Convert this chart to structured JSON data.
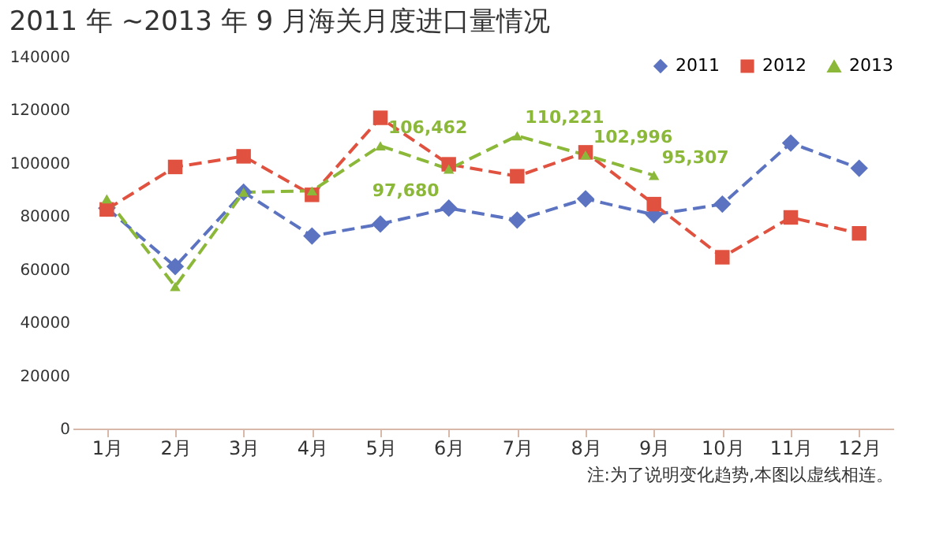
{
  "chart_data": {
    "type": "line",
    "title": "2011 年 ~2013 年 9 月海关月度进口量情况",
    "categories": [
      "1月",
      "2月",
      "3月",
      "4月",
      "5月",
      "6月",
      "7月",
      "8月",
      "9月",
      "10月",
      "11月",
      "12月"
    ],
    "series": [
      {
        "name": "2011",
        "color": "#5b73c0",
        "marker": "diamond",
        "line_style": "dashed",
        "values": [
          83000,
          61000,
          89000,
          72500,
          77000,
          83000,
          78500,
          86500,
          80500,
          84500,
          107500,
          98000
        ]
      },
      {
        "name": "2012",
        "color": "#e0523f",
        "marker": "square",
        "line_style": "dashed",
        "values": [
          82500,
          98500,
          102500,
          88000,
          117000,
          99500,
          95000,
          104000,
          84500,
          64500,
          79500,
          73500
        ]
      },
      {
        "name": "2013",
        "color": "#8cb83a",
        "marker": "triangle",
        "line_style": "dashed",
        "values": [
          86500,
          53500,
          89000,
          89500,
          106462,
          97680,
          110221,
          102996,
          95307,
          null,
          null,
          null
        ],
        "value_labels": [
          null,
          null,
          null,
          null,
          "106,462",
          "97,680",
          "110,221",
          "102,996",
          "95,307",
          null,
          null,
          null
        ]
      }
    ],
    "ylim": [
      0,
      140000
    ],
    "yticks": [
      0,
      20000,
      40000,
      60000,
      80000,
      100000,
      120000,
      140000
    ],
    "grid": false,
    "legend": "top right",
    "annotations": [
      "注:为了说明变化趋势,本图以虚线相连。"
    ]
  }
}
